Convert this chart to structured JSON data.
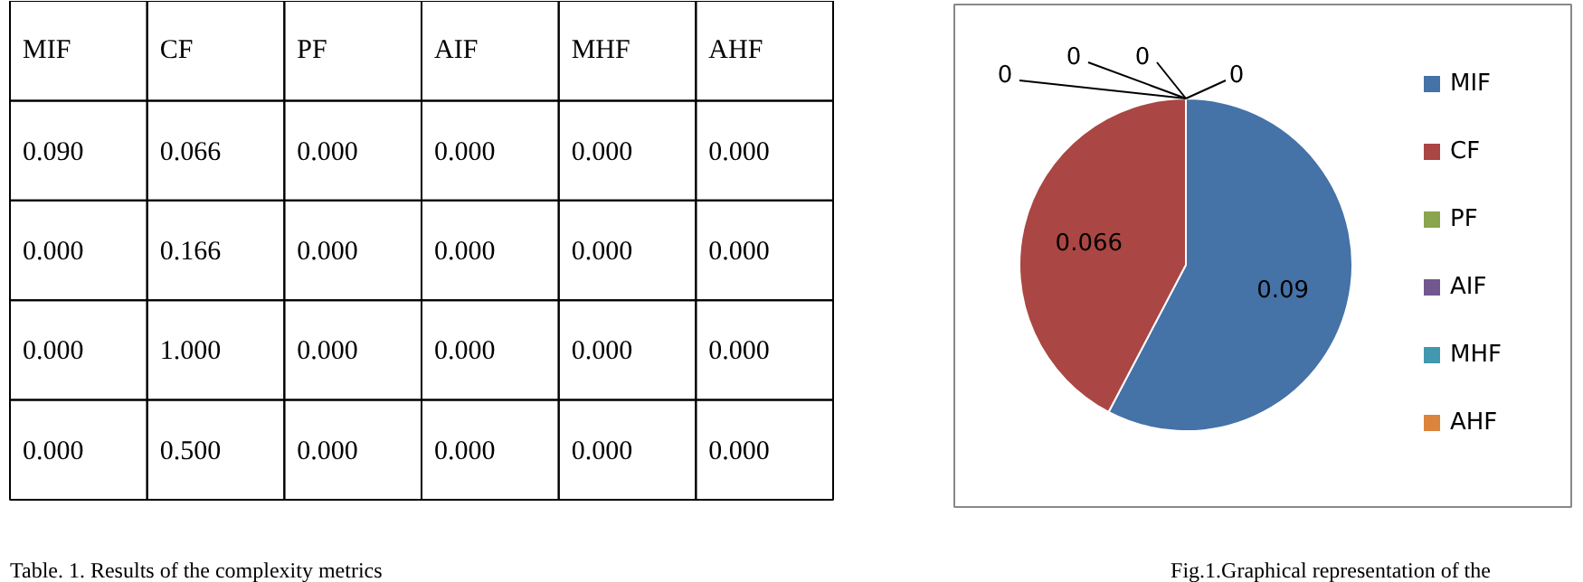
{
  "chart_data": [
    {
      "type": "other",
      "categories": [
        "MIF",
        "CF",
        "PF",
        "AIF",
        "MHF",
        "AHF"
      ],
      "cell_labels": [
        [
          "0.090",
          "0.066",
          "0.000",
          "0.000",
          "0.000",
          "0.000"
        ],
        [
          "0.000",
          "0.166",
          "0.000",
          "0.000",
          "0.000",
          "0.000"
        ],
        [
          "0.000",
          "1.000",
          "0.000",
          "0.000",
          "0.000",
          "0.000"
        ],
        [
          "0.000",
          "0.500",
          "0.000",
          "0.000",
          "0.000",
          "0.000"
        ]
      ],
      "annotations": [
        "Table. 1. Results of the complexity metrics"
      ]
    },
    {
      "type": "pie",
      "categories": [
        "MIF",
        "CF",
        "PF",
        "AIF",
        "MHF",
        "AHF"
      ],
      "values": [
        0.09,
        0.066,
        0,
        0,
        0,
        0
      ],
      "colors": [
        "#4572a7",
        "#aa4643",
        "#89a54e",
        "#71588f",
        "#4198af",
        "#db843d"
      ],
      "value_labels": [
        "0.09",
        "0.066",
        "0",
        "0",
        "0",
        "0"
      ],
      "legend": "right",
      "annotations": [
        "Fig.1.Graphical representation of the"
      ]
    }
  ]
}
